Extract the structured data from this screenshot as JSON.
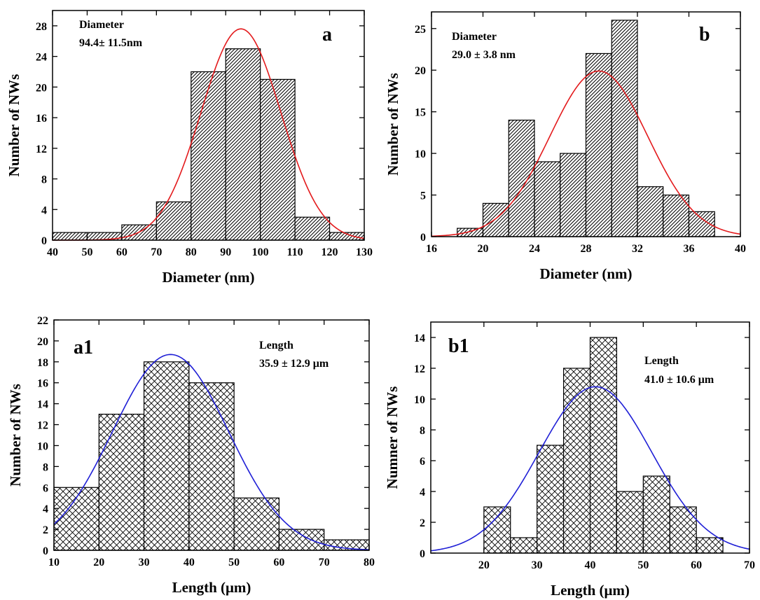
{
  "chart_data": [
    {
      "type": "bar",
      "panel_label": "a",
      "xlabel": "Diameter (nm)",
      "ylabel": "Number of NWs",
      "xlim": [
        40,
        130
      ],
      "ylim": [
        0,
        30
      ],
      "xticks": [
        40,
        50,
        60,
        70,
        80,
        90,
        100,
        110,
        120,
        130
      ],
      "yticks": [
        0,
        4,
        8,
        12,
        16,
        20,
        24,
        28
      ],
      "bin_edges": [
        40,
        50,
        60,
        70,
        80,
        90,
        100,
        110,
        120,
        130
      ],
      "counts": [
        1,
        1,
        2,
        5,
        22,
        25,
        21,
        3,
        1
      ],
      "hatch": "diagonal",
      "annotation": [
        "Diameter",
        "94.4± 11.5nm"
      ],
      "fit": {
        "type": "gaussian",
        "mean": 94.4,
        "sigma": 11.5,
        "peak": 27.6,
        "color": "#e31a1c"
      }
    },
    {
      "type": "bar",
      "panel_label": "b",
      "xlabel": "Diameter (nm)",
      "ylabel": "Number of NWs",
      "xlim": [
        16,
        40
      ],
      "ylim": [
        0,
        27
      ],
      "xticks": [
        16,
        20,
        24,
        28,
        32,
        36,
        40
      ],
      "yticks": [
        0,
        5,
        10,
        15,
        20,
        25
      ],
      "bin_edges": [
        18,
        20,
        22,
        24,
        26,
        28,
        30,
        32,
        34,
        36,
        38
      ],
      "counts": [
        1,
        4,
        14,
        9,
        10,
        22,
        26,
        6,
        5,
        3
      ],
      "hatch": "diagonal",
      "annotation": [
        "Diameter",
        "29.0 ± 3.8 nm"
      ],
      "fit": {
        "type": "gaussian",
        "mean": 29.0,
        "sigma": 3.8,
        "peak": 19.9,
        "color": "#e31a1c"
      }
    },
    {
      "type": "bar",
      "panel_label": "a1",
      "xlabel": "Length (μm)",
      "ylabel": "Number of NWs",
      "xlim": [
        10,
        80
      ],
      "ylim": [
        0,
        22
      ],
      "xticks": [
        10,
        20,
        30,
        40,
        50,
        60,
        70,
        80
      ],
      "yticks": [
        0,
        2,
        4,
        6,
        8,
        10,
        12,
        14,
        16,
        18,
        20,
        22
      ],
      "bin_edges": [
        10,
        20,
        30,
        40,
        50,
        60,
        70,
        80
      ],
      "counts": [
        6,
        13,
        18,
        16,
        5,
        2,
        1
      ],
      "hatch": "cross",
      "annotation": [
        "Length",
        "35.9 ± 12.9 μm"
      ],
      "fit": {
        "type": "gaussian",
        "mean": 35.9,
        "sigma": 12.9,
        "peak": 18.7,
        "color": "#1f1fd6"
      }
    },
    {
      "type": "bar",
      "panel_label": "b1",
      "xlabel": "Length (μm)",
      "ylabel": "Numner of NWs",
      "xlim": [
        10,
        70
      ],
      "ylim": [
        0,
        15
      ],
      "xticks": [
        20,
        30,
        40,
        50,
        60,
        70
      ],
      "yticks": [
        0,
        2,
        4,
        6,
        8,
        10,
        12,
        14
      ],
      "bin_edges": [
        20,
        25,
        30,
        35,
        40,
        45,
        50,
        55,
        60,
        65
      ],
      "counts": [
        3,
        1,
        7,
        12,
        14,
        4,
        5,
        3,
        1
      ],
      "hatch": "cross",
      "annotation": [
        "Length",
        "41.0 ± 10.6 μm"
      ],
      "fit": {
        "type": "gaussian",
        "mean": 41.0,
        "sigma": 10.6,
        "peak": 10.8,
        "color": "#1f1fd6"
      }
    }
  ]
}
